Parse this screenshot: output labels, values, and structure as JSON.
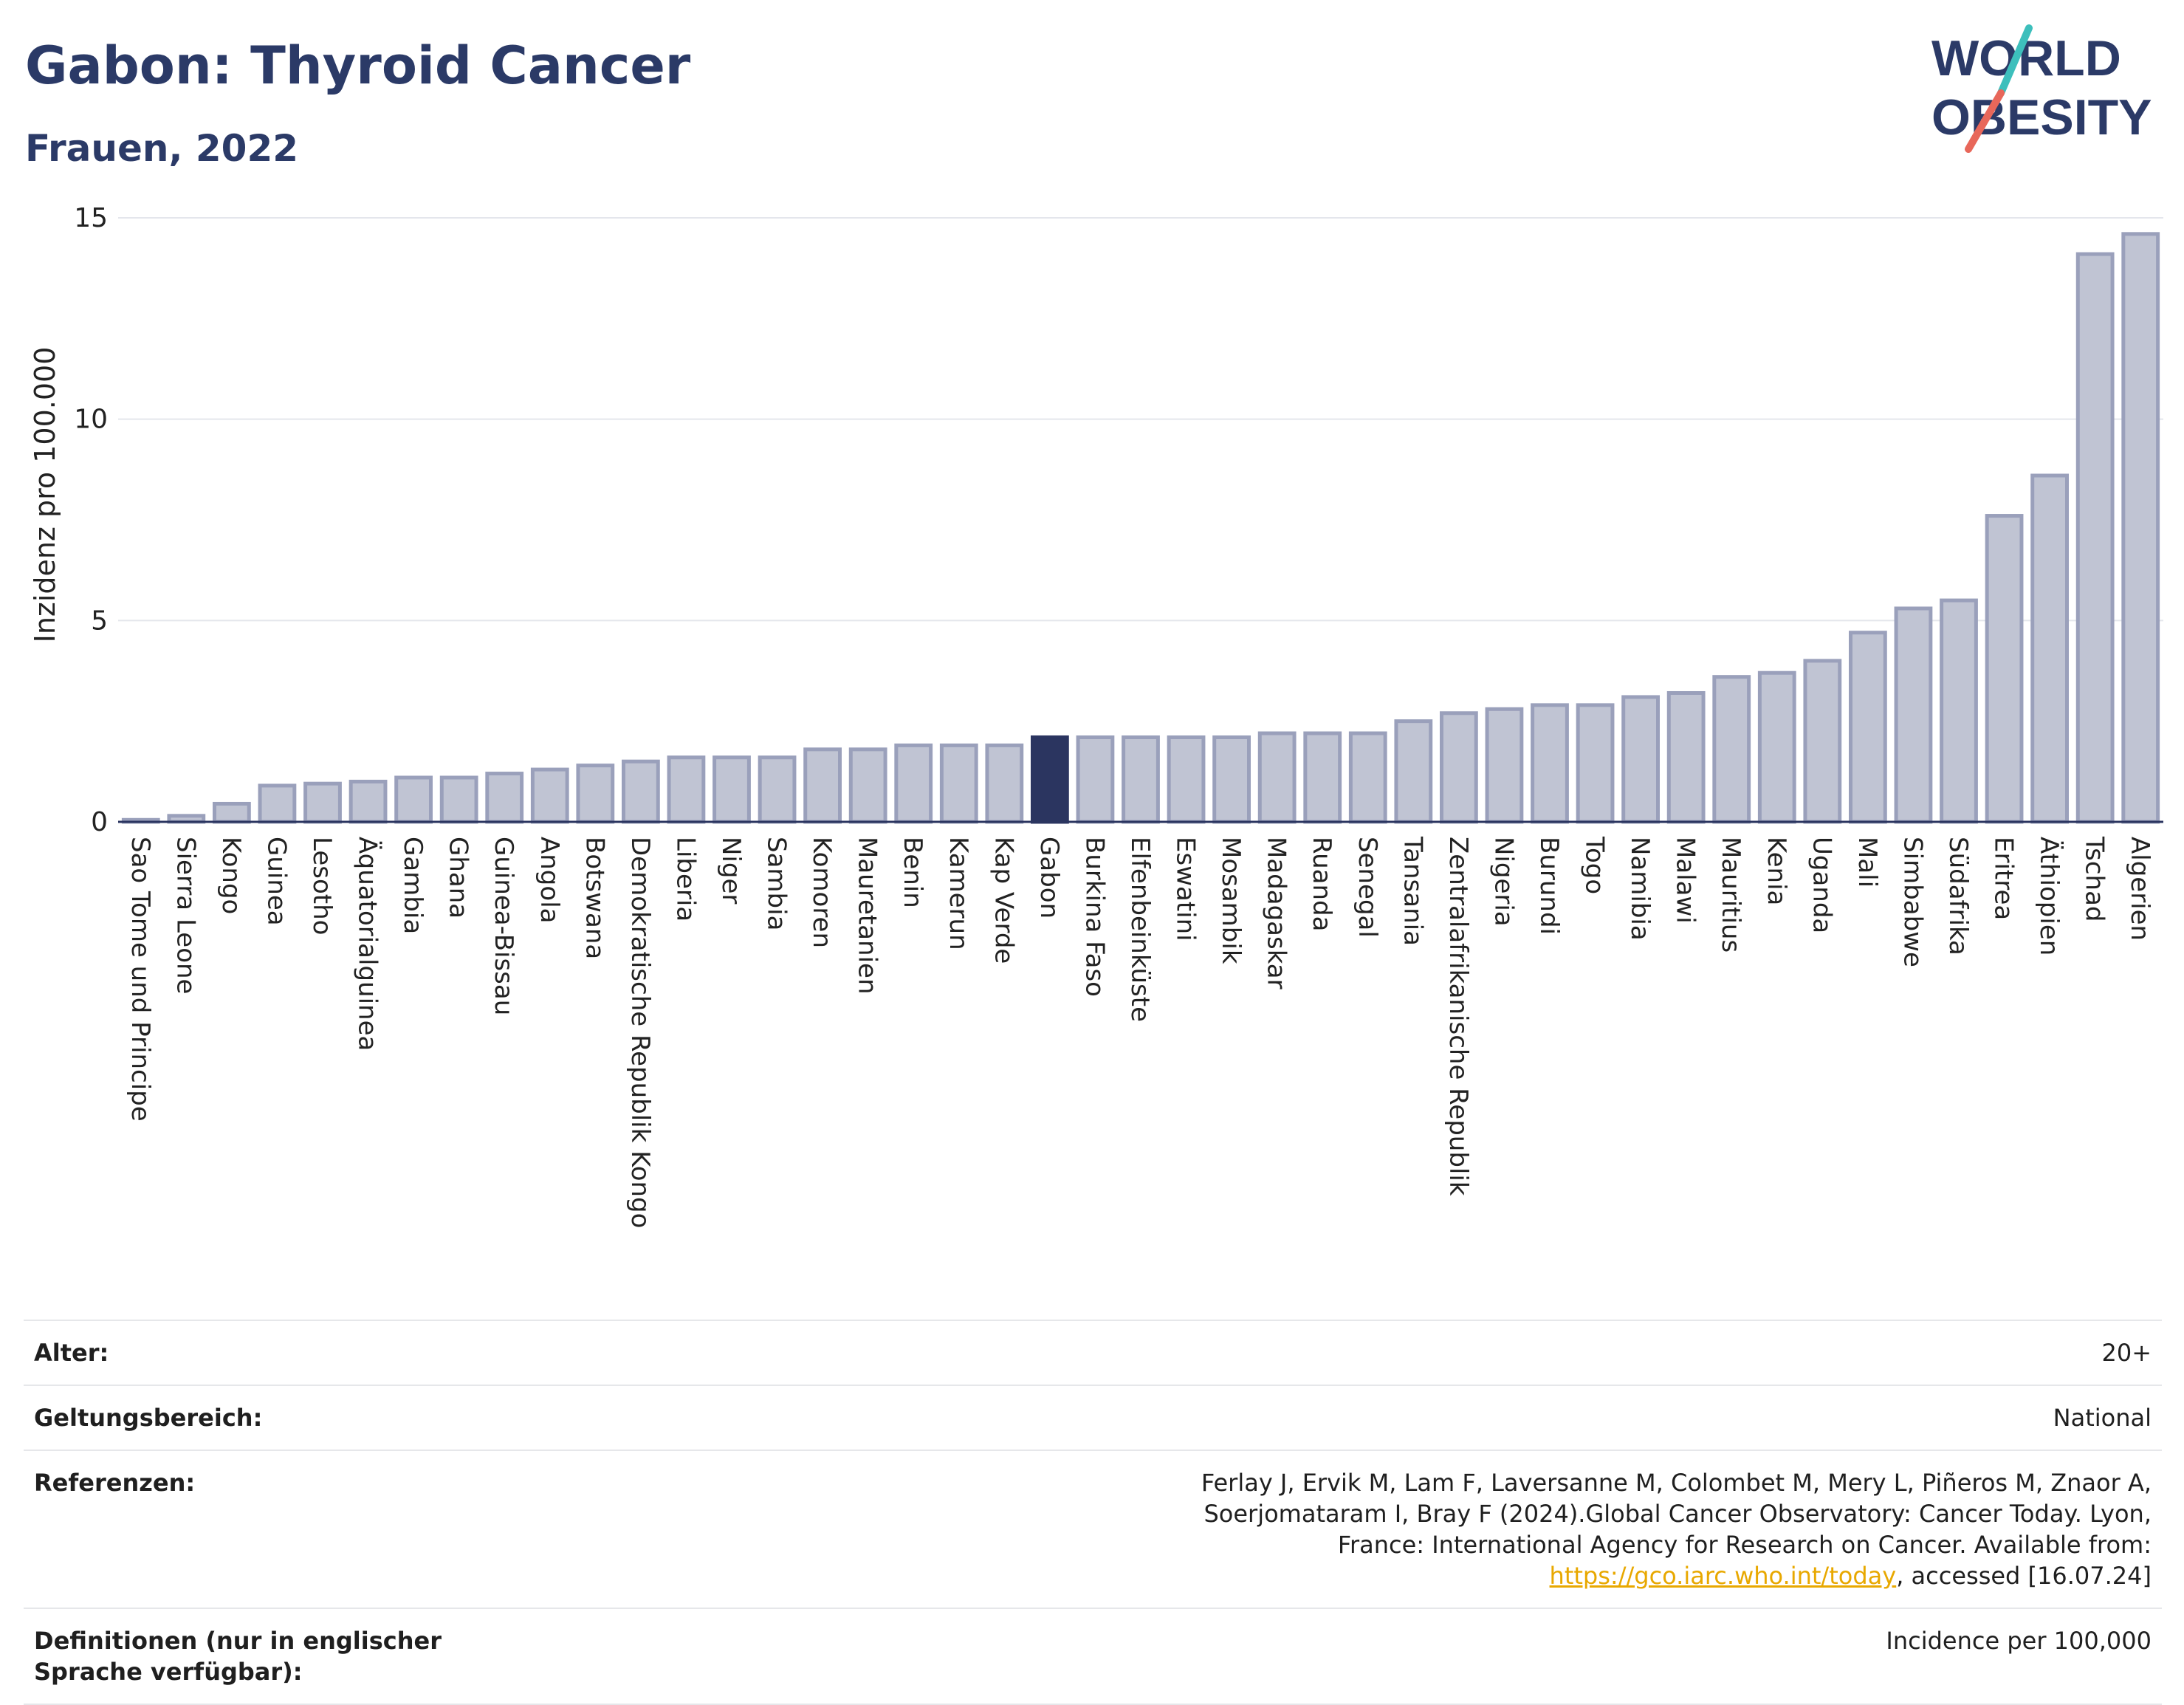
{
  "title": "Gabon: Thyroid Cancer",
  "subtitle": "Frauen, 2022",
  "logo": {
    "line1": "WORLD",
    "line2": "OBESITY"
  },
  "colors": {
    "highlight": "#2b3560",
    "bar": "#c0c4d3",
    "bar_border": "#9aa0bb",
    "title": "#2b3a67",
    "link": "#e8a800",
    "logo_slash_teal": "#3dbfbc",
    "logo_slash_red": "#e8675a"
  },
  "chart_data": {
    "type": "bar",
    "ylabel": "Inzidenz pro 100.000",
    "xlabel": "",
    "ylim": [
      0,
      15
    ],
    "yticks": [
      0,
      5,
      10,
      15
    ],
    "grid": true,
    "highlight": "Gabon",
    "categories": [
      "Sao Tome und Principe",
      "Sierra Leone",
      "Kongo",
      "Guinea",
      "Lesotho",
      "Äquatorialguinea",
      "Gambia",
      "Ghana",
      "Guinea-Bissau",
      "Angola",
      "Botswana",
      "Demokratische Republik Kongo",
      "Liberia",
      "Niger",
      "Sambia",
      "Komoren",
      "Mauretanien",
      "Benin",
      "Kamerun",
      "Kap Verde",
      "Gabon",
      "Burkina Faso",
      "Elfenbeinküste",
      "Eswatini",
      "Mosambik",
      "Madagaskar",
      "Ruanda",
      "Senegal",
      "Tansania",
      "Zentralafrikanische Republik",
      "Nigeria",
      "Burundi",
      "Togo",
      "Namibia",
      "Malawi",
      "Mauritius",
      "Kenia",
      "Uganda",
      "Mali",
      "Simbabwe",
      "Südafrika",
      "Eritrea",
      "Äthiopien",
      "Tschad",
      "Algerien"
    ],
    "values": [
      0.05,
      0.15,
      0.45,
      0.9,
      0.95,
      1.0,
      1.1,
      1.1,
      1.2,
      1.3,
      1.4,
      1.5,
      1.6,
      1.6,
      1.6,
      1.8,
      1.8,
      1.9,
      1.9,
      1.9,
      2.1,
      2.1,
      2.1,
      2.1,
      2.1,
      2.2,
      2.2,
      2.2,
      2.5,
      2.7,
      2.8,
      2.9,
      2.9,
      3.1,
      3.2,
      3.6,
      3.7,
      4.0,
      4.7,
      5.3,
      5.5,
      7.6,
      8.6,
      14.1,
      14.6
    ]
  },
  "info": [
    {
      "label": "Alter:",
      "value": "20+"
    },
    {
      "label": "Geltungsbereich:",
      "value": "National"
    },
    {
      "label": "Referenzen:",
      "value_pre": "Ferlay J, Ervik M, Lam F, Laversanne M, Colombet M, Mery L, Piñeros M, Znaor A, Soerjomataram I, Bray F (2024).Global Cancer Observatory: Cancer Today. Lyon, France: International Agency for Research on Cancer. Available from: ",
      "link": "https://gco.iarc.who.int/today",
      "value_post": ", accessed [16.07.24]"
    },
    {
      "label": "Definitionen (nur in englischer Sprache verfügbar):",
      "value": "Incidence per 100,000"
    }
  ]
}
